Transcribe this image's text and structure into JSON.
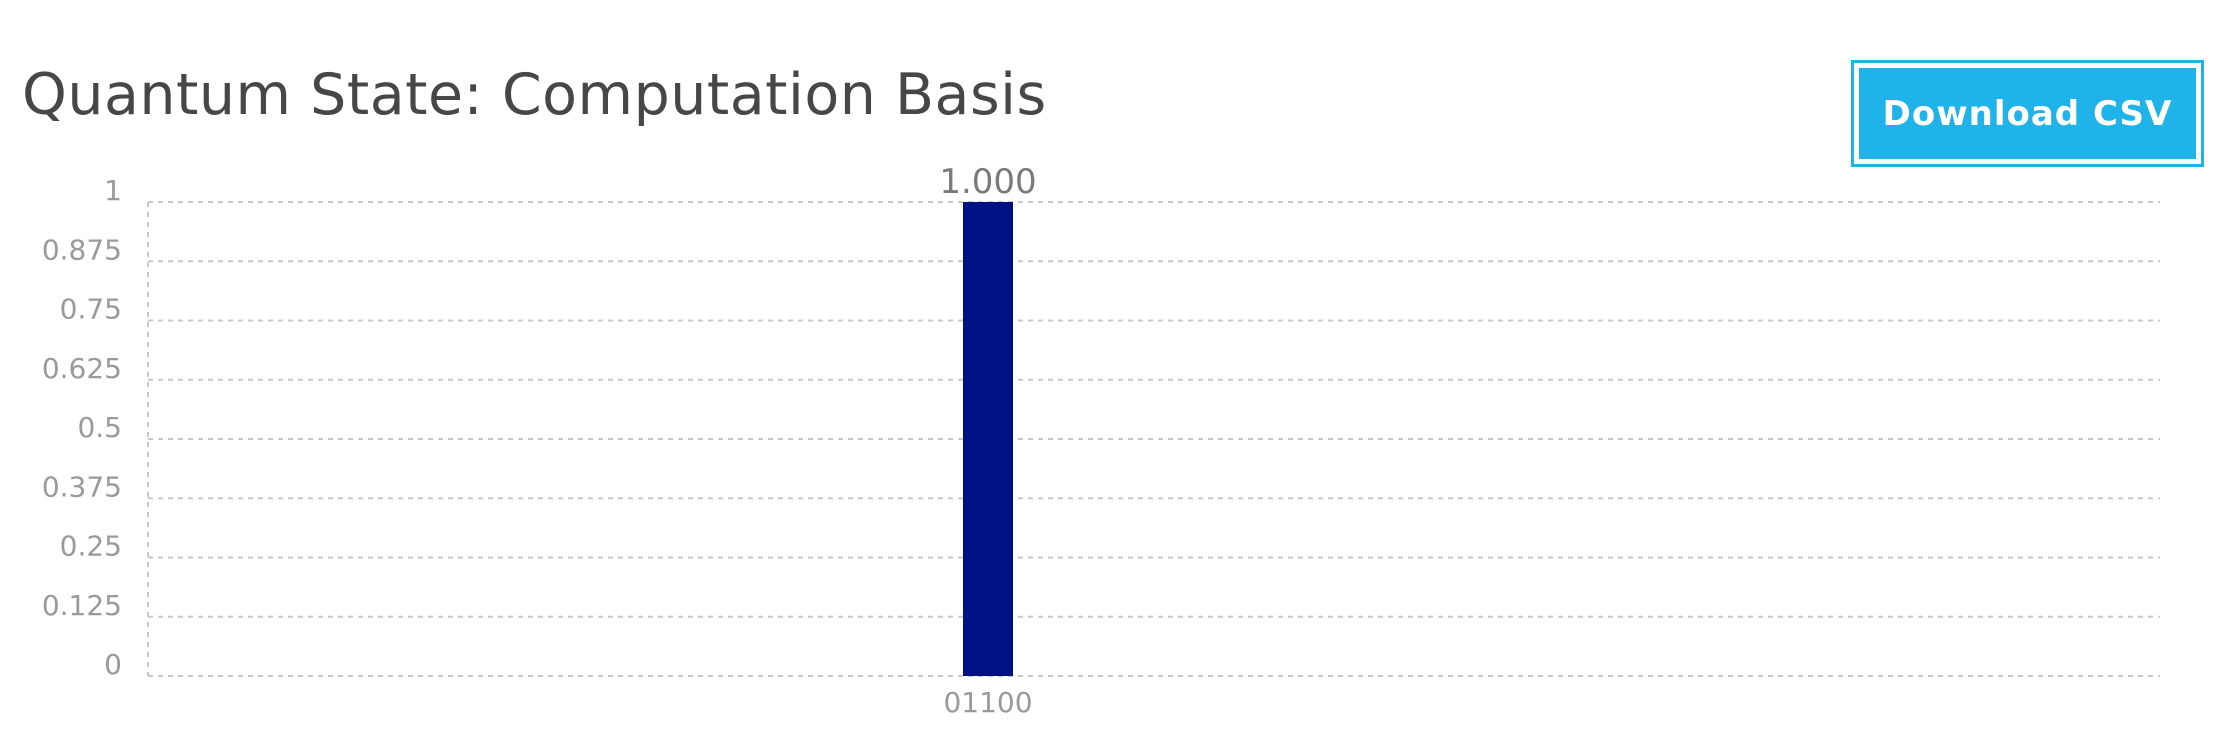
{
  "header": {
    "title": "Quantum State: Computation Basis",
    "download_label": "Download CSV"
  },
  "colors": {
    "bar": "#001184",
    "button": "#20b3e9",
    "grid": "#c8c8c8",
    "title": "#474747"
  },
  "chart_data": {
    "type": "bar",
    "title": "Quantum State: Computation Basis",
    "xlabel": "",
    "ylabel": "",
    "categories": [
      "01100"
    ],
    "values": [
      1.0
    ],
    "value_labels": [
      "1.000"
    ],
    "ylim": [
      0,
      1
    ],
    "yticks": [
      0,
      0.125,
      0.25,
      0.375,
      0.5,
      0.625,
      0.75,
      0.875,
      1
    ],
    "ytick_labels": [
      "0",
      "0.125",
      "0.25",
      "0.375",
      "0.5",
      "0.625",
      "0.75",
      "0.875",
      "1"
    ],
    "grid": true,
    "grid_style": "dashed",
    "legend": "none"
  }
}
